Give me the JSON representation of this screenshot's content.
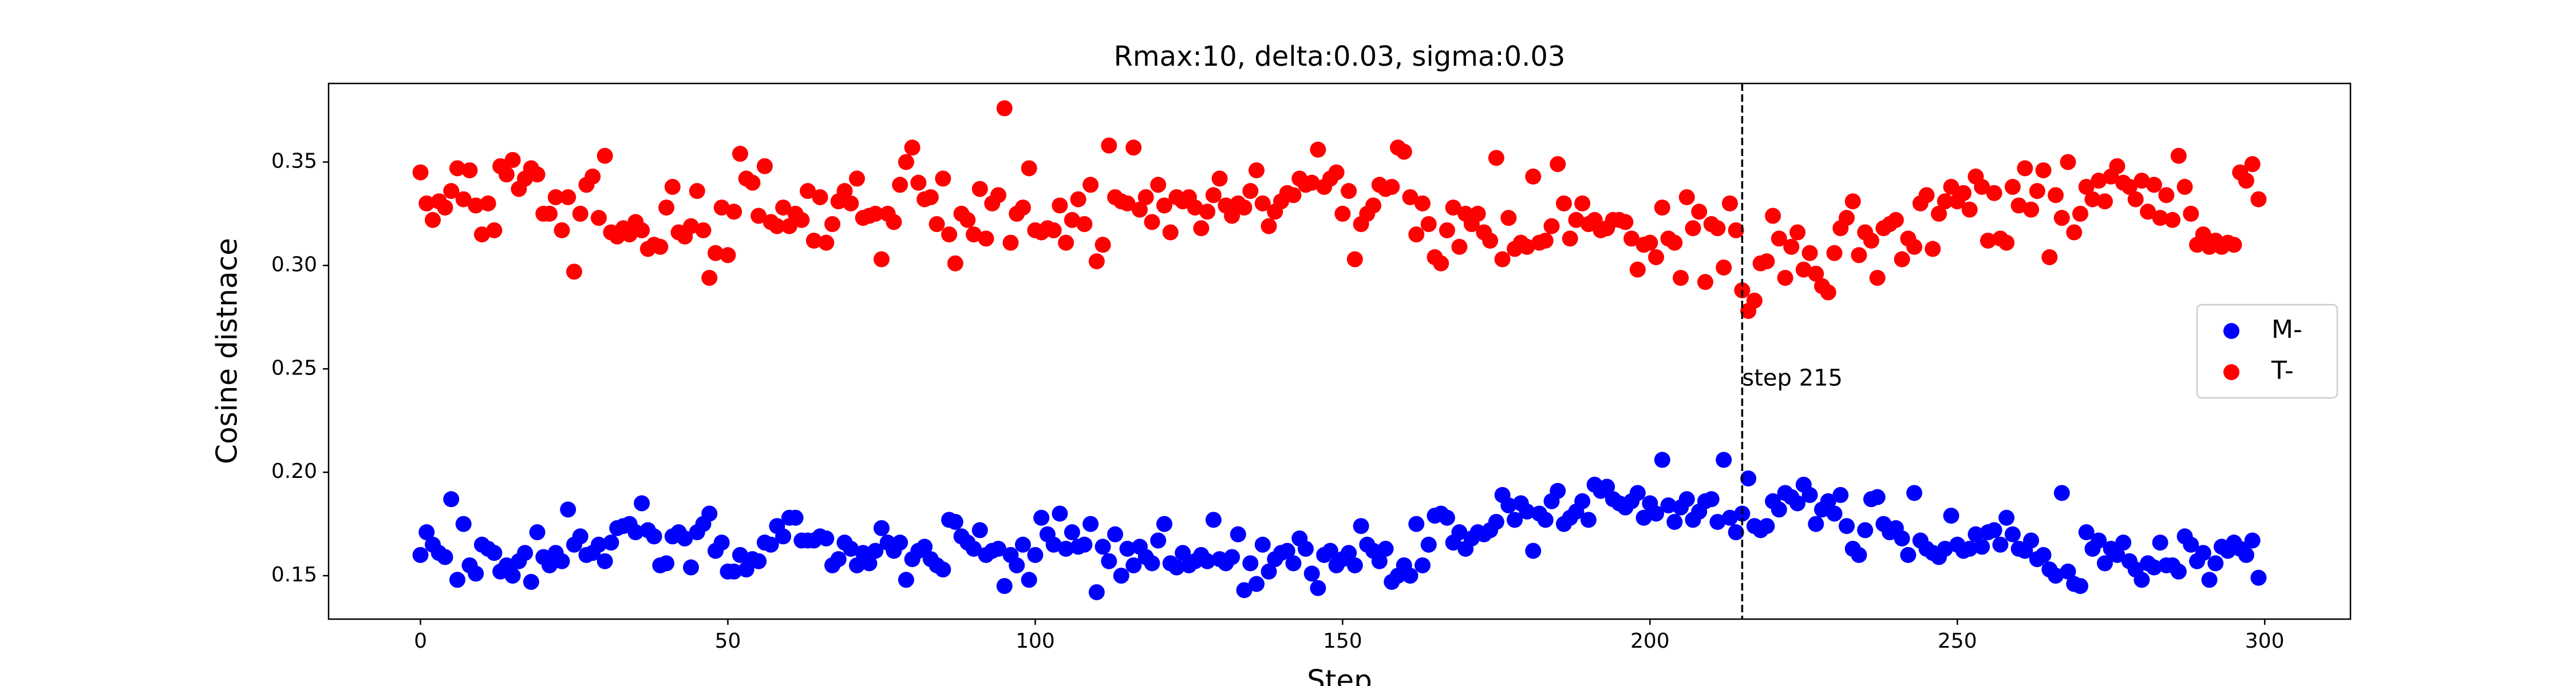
{
  "chart_data": {
    "type": "scatter",
    "title": "Rmax:10, delta:0.03, sigma:0.03",
    "x_label": "Step",
    "y_label": "Cosine distnace",
    "x": [
      0,
      1,
      2,
      3,
      4,
      5,
      6,
      7,
      8,
      9,
      10,
      11,
      12,
      13,
      14,
      15,
      16,
      17,
      18,
      19,
      20,
      21,
      22,
      23,
      24,
      25,
      26,
      27,
      28,
      29,
      30,
      31,
      32,
      33,
      34,
      35,
      36,
      37,
      38,
      39,
      40,
      41,
      42,
      43,
      44,
      45,
      46,
      47,
      48,
      49,
      50,
      51,
      52,
      53,
      54,
      55,
      56,
      57,
      58,
      59,
      60,
      61,
      62,
      63,
      64,
      65,
      66,
      67,
      68,
      69,
      70,
      71,
      72,
      73,
      74,
      75,
      76,
      77,
      78,
      79,
      80,
      81,
      82,
      83,
      84,
      85,
      86,
      87,
      88,
      89,
      90,
      91,
      92,
      93,
      94,
      95,
      96,
      97,
      98,
      99,
      100,
      101,
      102,
      103,
      104,
      105,
      106,
      107,
      108,
      109,
      110,
      111,
      112,
      113,
      114,
      115,
      116,
      117,
      118,
      119,
      120,
      121,
      122,
      123,
      124,
      125,
      126,
      127,
      128,
      129,
      130,
      131,
      132,
      133,
      134,
      135,
      136,
      137,
      138,
      139,
      140,
      141,
      142,
      143,
      144,
      145,
      146,
      147,
      148,
      149,
      150,
      151,
      152,
      153,
      154,
      155,
      156,
      157,
      158,
      159,
      160,
      161,
      162,
      163,
      164,
      165,
      166,
      167,
      168,
      169,
      170,
      171,
      172,
      173,
      174,
      175,
      176,
      177,
      178,
      179,
      180,
      181,
      182,
      183,
      184,
      185,
      186,
      187,
      188,
      189,
      190,
      191,
      192,
      193,
      194,
      195,
      196,
      197,
      198,
      199,
      200,
      201,
      202,
      203,
      204,
      205,
      206,
      207,
      208,
      209,
      210,
      211,
      212,
      213,
      214,
      215,
      216,
      217,
      218,
      219,
      220,
      221,
      222,
      223,
      224,
      225,
      226,
      227,
      228,
      229,
      230,
      231,
      232,
      233,
      234,
      235,
      236,
      237,
      238,
      239,
      240,
      241,
      242,
      243,
      244,
      245,
      246,
      247,
      248,
      249,
      250,
      251,
      252,
      253,
      254,
      255,
      256,
      257,
      258,
      259,
      260,
      261,
      262,
      263,
      264,
      265,
      266,
      267,
      268,
      269,
      270,
      271,
      272,
      273,
      274,
      275,
      276,
      277,
      278,
      279,
      280,
      281,
      282,
      283,
      284,
      285,
      286,
      287,
      288,
      289,
      290,
      291,
      292,
      293,
      294,
      295,
      296,
      297,
      298,
      299
    ],
    "series": [
      {
        "name": "M-",
        "color": "#0000ff",
        "values": [
          0.16,
          0.171,
          0.165,
          0.161,
          0.159,
          0.187,
          0.148,
          0.175,
          0.155,
          0.151,
          0.165,
          0.163,
          0.161,
          0.152,
          0.155,
          0.15,
          0.157,
          0.161,
          0.147,
          0.171,
          0.159,
          0.155,
          0.161,
          0.157,
          0.182,
          0.165,
          0.169,
          0.16,
          0.161,
          0.165,
          0.157,
          0.166,
          0.173,
          0.174,
          0.175,
          0.171,
          0.185,
          0.172,
          0.169,
          0.155,
          0.156,
          0.169,
          0.171,
          0.168,
          0.154,
          0.171,
          0.175,
          0.18,
          0.162,
          0.166,
          0.152,
          0.152,
          0.16,
          0.153,
          0.158,
          0.157,
          0.166,
          0.165,
          0.174,
          0.169,
          0.178,
          0.178,
          0.167,
          0.167,
          0.167,
          0.169,
          0.168,
          0.155,
          0.158,
          0.166,
          0.163,
          0.155,
          0.161,
          0.156,
          0.162,
          0.173,
          0.166,
          0.162,
          0.166,
          0.148,
          0.158,
          0.162,
          0.164,
          0.158,
          0.155,
          0.153,
          0.177,
          0.176,
          0.169,
          0.166,
          0.163,
          0.172,
          0.16,
          0.162,
          0.163,
          0.145,
          0.16,
          0.155,
          0.165,
          0.148,
          0.16,
          0.178,
          0.17,
          0.165,
          0.18,
          0.163,
          0.171,
          0.164,
          0.165,
          0.175,
          0.142,
          0.164,
          0.157,
          0.17,
          0.15,
          0.163,
          0.155,
          0.164,
          0.159,
          0.156,
          0.167,
          0.175,
          0.156,
          0.154,
          0.161,
          0.155,
          0.157,
          0.16,
          0.157,
          0.177,
          0.158,
          0.156,
          0.159,
          0.17,
          0.143,
          0.156,
          0.146,
          0.165,
          0.152,
          0.158,
          0.161,
          0.162,
          0.156,
          0.168,
          0.163,
          0.151,
          0.144,
          0.16,
          0.162,
          0.155,
          0.158,
          0.161,
          0.155,
          0.174,
          0.165,
          0.162,
          0.157,
          0.163,
          0.147,
          0.15,
          0.155,
          0.15,
          0.175,
          0.155,
          0.165,
          0.179,
          0.18,
          0.178,
          0.166,
          0.171,
          0.163,
          0.168,
          0.171,
          0.17,
          0.172,
          0.176,
          0.189,
          0.184,
          0.177,
          0.185,
          0.181,
          0.162,
          0.18,
          0.177,
          0.186,
          0.191,
          0.175,
          0.178,
          0.181,
          0.186,
          0.177,
          0.194,
          0.191,
          0.193,
          0.187,
          0.185,
          0.183,
          0.186,
          0.19,
          0.178,
          0.185,
          0.18,
          0.206,
          0.184,
          0.176,
          0.183,
          0.187,
          0.177,
          0.181,
          0.186,
          0.187,
          0.176,
          0.206,
          0.178,
          0.171,
          0.18,
          0.197,
          0.174,
          0.172,
          0.174,
          0.186,
          0.182,
          0.19,
          0.188,
          0.185,
          0.194,
          0.189,
          0.175,
          0.182,
          0.186,
          0.18,
          0.189,
          0.174,
          0.163,
          0.16,
          0.172,
          0.187,
          0.188,
          0.175,
          0.171,
          0.173,
          0.168,
          0.16,
          0.19,
          0.167,
          0.163,
          0.161,
          0.159,
          0.163,
          0.179,
          0.165,
          0.162,
          0.163,
          0.17,
          0.164,
          0.171,
          0.172,
          0.165,
          0.178,
          0.17,
          0.163,
          0.162,
          0.167,
          0.158,
          0.16,
          0.153,
          0.15,
          0.19,
          0.152,
          0.146,
          0.145,
          0.171,
          0.163,
          0.167,
          0.156,
          0.163,
          0.16,
          0.166,
          0.157,
          0.153,
          0.148,
          0.156,
          0.154,
          0.166,
          0.155,
          0.155,
          0.152,
          0.169,
          0.165,
          0.157,
          0.161,
          0.148,
          0.156,
          0.164,
          0.162,
          0.166,
          0.163,
          0.16,
          0.167,
          0.149
        ]
      },
      {
        "name": "T-",
        "color": "#ff0000",
        "values": [
          0.345,
          0.33,
          0.322,
          0.331,
          0.328,
          0.336,
          0.347,
          0.332,
          0.346,
          0.329,
          0.315,
          0.33,
          0.317,
          0.348,
          0.344,
          0.351,
          0.337,
          0.342,
          0.347,
          0.344,
          0.325,
          0.325,
          0.333,
          0.317,
          0.333,
          0.297,
          0.325,
          0.339,
          0.343,
          0.323,
          0.353,
          0.316,
          0.314,
          0.318,
          0.315,
          0.321,
          0.317,
          0.308,
          0.31,
          0.309,
          0.328,
          0.338,
          0.316,
          0.314,
          0.319,
          0.336,
          0.317,
          0.294,
          0.306,
          0.328,
          0.305,
          0.326,
          0.354,
          0.342,
          0.34,
          0.324,
          0.348,
          0.321,
          0.319,
          0.328,
          0.319,
          0.325,
          0.322,
          0.336,
          0.312,
          0.333,
          0.311,
          0.32,
          0.331,
          0.336,
          0.33,
          0.342,
          0.323,
          0.324,
          0.325,
          0.303,
          0.325,
          0.321,
          0.339,
          0.35,
          0.357,
          0.34,
          0.332,
          0.333,
          0.32,
          0.342,
          0.315,
          0.301,
          0.325,
          0.322,
          0.315,
          0.337,
          0.313,
          0.33,
          0.334,
          0.376,
          0.311,
          0.325,
          0.328,
          0.347,
          0.317,
          0.316,
          0.318,
          0.317,
          0.329,
          0.311,
          0.322,
          0.332,
          0.32,
          0.339,
          0.302,
          0.31,
          0.358,
          0.333,
          0.331,
          0.33,
          0.357,
          0.327,
          0.333,
          0.321,
          0.339,
          0.329,
          0.316,
          0.333,
          0.331,
          0.333,
          0.328,
          0.318,
          0.326,
          0.334,
          0.342,
          0.329,
          0.324,
          0.33,
          0.328,
          0.336,
          0.346,
          0.33,
          0.319,
          0.326,
          0.331,
          0.335,
          0.334,
          0.342,
          0.339,
          0.34,
          0.356,
          0.338,
          0.342,
          0.345,
          0.325,
          0.336,
          0.303,
          0.32,
          0.325,
          0.329,
          0.339,
          0.337,
          0.338,
          0.357,
          0.355,
          0.333,
          0.315,
          0.33,
          0.32,
          0.304,
          0.301,
          0.317,
          0.328,
          0.309,
          0.325,
          0.32,
          0.325,
          0.316,
          0.312,
          0.352,
          0.303,
          0.323,
          0.308,
          0.311,
          0.309,
          0.343,
          0.311,
          0.312,
          0.319,
          0.349,
          0.33,
          0.313,
          0.322,
          0.33,
          0.32,
          0.322,
          0.317,
          0.318,
          0.322,
          0.322,
          0.321,
          0.313,
          0.298,
          0.31,
          0.311,
          0.304,
          0.328,
          0.313,
          0.311,
          0.294,
          0.333,
          0.318,
          0.326,
          0.292,
          0.32,
          0.318,
          0.299,
          0.33,
          0.317,
          0.288,
          0.278,
          0.283,
          0.301,
          0.302,
          0.324,
          0.313,
          0.294,
          0.309,
          0.316,
          0.298,
          0.306,
          0.296,
          0.29,
          0.287,
          0.306,
          0.318,
          0.323,
          0.331,
          0.305,
          0.316,
          0.312,
          0.294,
          0.318,
          0.32,
          0.322,
          0.303,
          0.313,
          0.309,
          0.33,
          0.334,
          0.308,
          0.325,
          0.331,
          0.338,
          0.331,
          0.335,
          0.327,
          0.343,
          0.338,
          0.312,
          0.335,
          0.313,
          0.311,
          0.338,
          0.329,
          0.347,
          0.327,
          0.336,
          0.346,
          0.304,
          0.334,
          0.323,
          0.35,
          0.316,
          0.325,
          0.338,
          0.332,
          0.341,
          0.331,
          0.343,
          0.348,
          0.34,
          0.338,
          0.332,
          0.341,
          0.326,
          0.339,
          0.323,
          0.334,
          0.322,
          0.353,
          0.338,
          0.325,
          0.31,
          0.315,
          0.309,
          0.312,
          0.309,
          0.311,
          0.31,
          0.345,
          0.341,
          0.349,
          0.332
        ]
      }
    ],
    "xlim": [
      -14.95,
      313.95
    ],
    "xticks": [
      0,
      50,
      100,
      150,
      200,
      250,
      300
    ],
    "ylim": [
      0.129,
      0.388
    ],
    "yticks": [
      0.15,
      {
        "value": 0.2,
        "label": "0.20"
      },
      0.25,
      {
        "value": 0.3,
        "label": "0.30"
      },
      0.35
    ],
    "vline": {
      "x": 215,
      "style": "dashed",
      "color": "#000000"
    },
    "annotation": {
      "text": "step 215",
      "x": 215,
      "y": 0.245
    },
    "legend": "center right"
  }
}
